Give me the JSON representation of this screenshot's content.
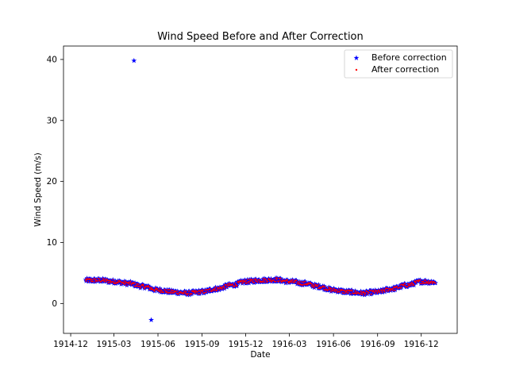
{
  "chart_data": {
    "type": "scatter",
    "title": "Wind Speed Before and After Correction",
    "xlabel": "Date",
    "ylabel": "Wind Speed (m/s)",
    "x_axis_type": "date",
    "xlim": [
      "1914-11-16",
      "1917-02-14"
    ],
    "ylim": [
      -4.9,
      42.2
    ],
    "x_ticks": [
      "1914-12",
      "1915-03",
      "1915-06",
      "1915-09",
      "1915-12",
      "1916-03",
      "1916-06",
      "1916-09",
      "1916-12"
    ],
    "y_ticks": [
      0,
      10,
      20,
      30,
      40
    ],
    "grid": false,
    "legend_position": "top-right",
    "series": [
      {
        "name": "Before correction",
        "marker": "star",
        "color": "#0000ff",
        "trend_description": "daily values following a seasonal cycle between about 1.5 and 4 m/s, with small random scatter",
        "date_range": [
          "1915-01-01",
          "1916-12-31"
        ],
        "outliers": [
          {
            "x": "1915-04-12",
            "y": 39.8
          },
          {
            "x": "1915-05-18",
            "y": -2.7
          }
        ],
        "sampled_points": [
          {
            "x": "1915-01-01",
            "y": 3.8
          },
          {
            "x": "1915-02-01",
            "y": 3.8
          },
          {
            "x": "1915-03-01",
            "y": 3.6
          },
          {
            "x": "1915-04-01",
            "y": 3.3
          },
          {
            "x": "1915-05-01",
            "y": 2.8
          },
          {
            "x": "1915-06-01",
            "y": 2.2
          },
          {
            "x": "1915-07-01",
            "y": 1.9
          },
          {
            "x": "1915-08-01",
            "y": 1.7
          },
          {
            "x": "1915-09-01",
            "y": 1.9
          },
          {
            "x": "1915-10-01",
            "y": 2.4
          },
          {
            "x": "1915-11-01",
            "y": 3.0
          },
          {
            "x": "1915-12-01",
            "y": 3.6
          },
          {
            "x": "1916-01-01",
            "y": 3.8
          },
          {
            "x": "1916-02-01",
            "y": 3.9
          },
          {
            "x": "1916-03-01",
            "y": 3.6
          },
          {
            "x": "1916-04-01",
            "y": 3.3
          },
          {
            "x": "1916-05-01",
            "y": 2.8
          },
          {
            "x": "1916-06-01",
            "y": 2.2
          },
          {
            "x": "1916-07-01",
            "y": 1.9
          },
          {
            "x": "1916-08-01",
            "y": 1.7
          },
          {
            "x": "1916-09-01",
            "y": 1.9
          },
          {
            "x": "1916-10-01",
            "y": 2.4
          },
          {
            "x": "1916-11-01",
            "y": 3.0
          },
          {
            "x": "1916-12-01",
            "y": 3.6
          },
          {
            "x": "1916-12-31",
            "y": 3.5
          }
        ]
      },
      {
        "name": "After correction",
        "marker": "dot",
        "color": "#ff0000",
        "trend_description": "same seasonal cycle with outliers removed",
        "date_range": [
          "1915-01-01",
          "1916-12-31"
        ]
      }
    ]
  }
}
